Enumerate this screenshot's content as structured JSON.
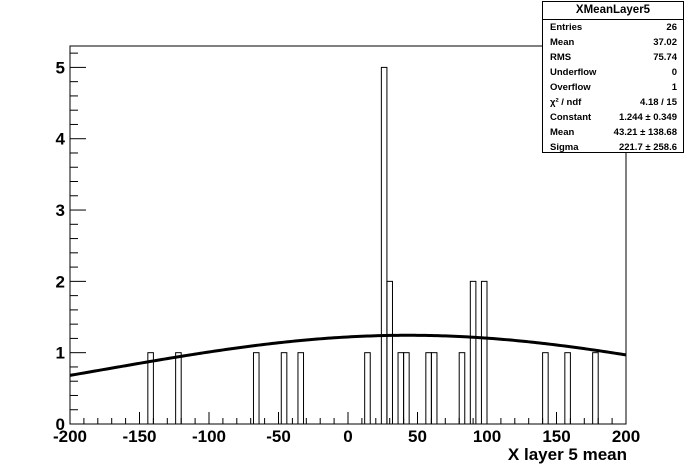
{
  "chart_data": {
    "type": "histogram",
    "title": "",
    "xlabel": "X layer 5 mean",
    "ylabel": "",
    "xlim": [
      -200,
      200
    ],
    "ylim": [
      0,
      5.3
    ],
    "x_ticks": [
      "-200",
      "-150",
      "-100",
      "-50",
      "0",
      "50",
      "100",
      "150",
      "200"
    ],
    "y_ticks": [
      "0",
      "1",
      "2",
      "3",
      "4",
      "5"
    ],
    "bin_width": 4,
    "bins": [
      {
        "x": -144,
        "value": 1
      },
      {
        "x": -124,
        "value": 1
      },
      {
        "x": -68,
        "value": 1
      },
      {
        "x": -48,
        "value": 1
      },
      {
        "x": -36,
        "value": 1
      },
      {
        "x": 12,
        "value": 1
      },
      {
        "x": 24,
        "value": 5
      },
      {
        "x": 28,
        "value": 2
      },
      {
        "x": 36,
        "value": 1
      },
      {
        "x": 40,
        "value": 1
      },
      {
        "x": 56,
        "value": 1
      },
      {
        "x": 60,
        "value": 1
      },
      {
        "x": 80,
        "value": 1
      },
      {
        "x": 88,
        "value": 2
      },
      {
        "x": 96,
        "value": 2
      },
      {
        "x": 140,
        "value": 1
      },
      {
        "x": 156,
        "value": 1
      },
      {
        "x": 176,
        "value": 1
      }
    ],
    "fit": {
      "function": "gaus",
      "constant": 1.244,
      "mean": 43.21,
      "sigma": 221.7
    },
    "grid": false,
    "legend": "top-right"
  },
  "stats": {
    "title": "XMeanLayer5",
    "rows": [
      {
        "label": "Entries",
        "value": "26"
      },
      {
        "label": "Mean",
        "value": "37.02"
      },
      {
        "label": "RMS",
        "value": "75.74"
      },
      {
        "label": "Underflow",
        "value": "0"
      },
      {
        "label": "Overflow",
        "value": "1"
      },
      {
        "label": "χ² / ndf",
        "value": "4.18 / 15"
      },
      {
        "label": "Constant",
        "value": "1.244 ± 0.349"
      },
      {
        "label": "Mean",
        "value": "43.21 ± 138.68"
      },
      {
        "label": "Sigma",
        "value": "221.7 ± 258.6"
      }
    ]
  }
}
